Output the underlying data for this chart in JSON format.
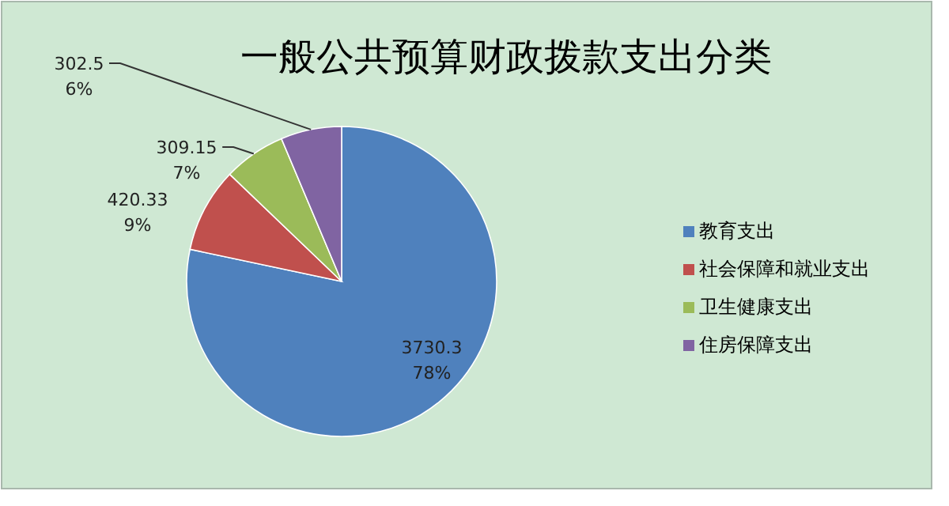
{
  "chart_data": {
    "type": "pie",
    "title": "一般公共预算财政拨款支出分类",
    "categories": [
      "教育支出",
      "社会保障和就业支出",
      "卫生健康支出",
      "住房保障支出"
    ],
    "values": [
      3730.3,
      420.33,
      309.15,
      302.5
    ],
    "colors": [
      "#4f81bd",
      "#c0504d",
      "#9bbb59",
      "#8064a2"
    ],
    "value_labels": [
      "3730.3\n78%",
      "420.33\n9%",
      "309.15\n7%",
      "302.5\n6%"
    ],
    "legend": "right"
  }
}
